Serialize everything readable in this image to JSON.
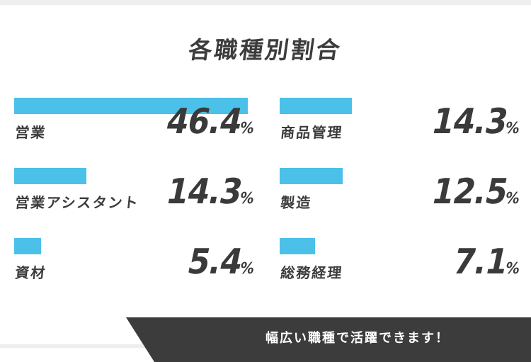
{
  "chart_data": {
    "type": "bar",
    "title": "各職種別割合",
    "unit": "%",
    "categories": [
      "営業",
      "営業アシスタント",
      "資材",
      "商品管理",
      "製造",
      "総務経理"
    ],
    "values": [
      46.4,
      14.3,
      5.4,
      14.3,
      12.5,
      7.1
    ],
    "value_labels": [
      "46.4",
      "14.3",
      "5.4",
      "14.3",
      "12.5",
      "7.1"
    ],
    "bar_color": "#4bc1ea"
  },
  "banner": {
    "text": "幅広い職種で活躍できます！"
  }
}
